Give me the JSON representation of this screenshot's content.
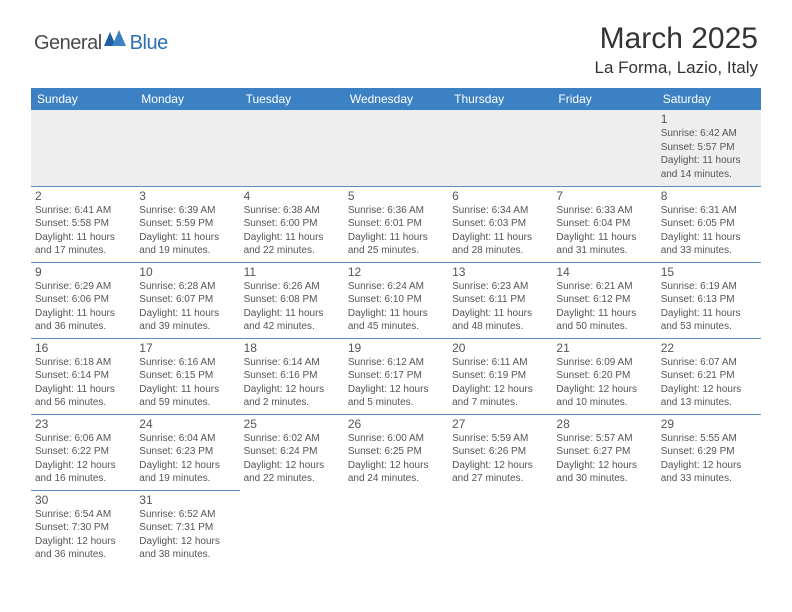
{
  "logo": {
    "text1": "General",
    "text2": "Blue"
  },
  "title": "March 2025",
  "location": "La Forma, Lazio, Italy",
  "colors": {
    "header_bg": "#3c81c4",
    "header_text": "#ffffff",
    "cell_border": "#5a8dc0",
    "shade": "#eeeeee",
    "text": "#555555",
    "logo_blue": "#2d6fb5"
  },
  "day_names": [
    "Sunday",
    "Monday",
    "Tuesday",
    "Wednesday",
    "Thursday",
    "Friday",
    "Saturday"
  ],
  "weeks": [
    [
      null,
      null,
      null,
      null,
      null,
      null,
      {
        "n": "1",
        "sr": "6:42 AM",
        "ss": "5:57 PM",
        "dl": "11 hours and 14 minutes."
      }
    ],
    [
      {
        "n": "2",
        "sr": "6:41 AM",
        "ss": "5:58 PM",
        "dl": "11 hours and 17 minutes."
      },
      {
        "n": "3",
        "sr": "6:39 AM",
        "ss": "5:59 PM",
        "dl": "11 hours and 19 minutes."
      },
      {
        "n": "4",
        "sr": "6:38 AM",
        "ss": "6:00 PM",
        "dl": "11 hours and 22 minutes."
      },
      {
        "n": "5",
        "sr": "6:36 AM",
        "ss": "6:01 PM",
        "dl": "11 hours and 25 minutes."
      },
      {
        "n": "6",
        "sr": "6:34 AM",
        "ss": "6:03 PM",
        "dl": "11 hours and 28 minutes."
      },
      {
        "n": "7",
        "sr": "6:33 AM",
        "ss": "6:04 PM",
        "dl": "11 hours and 31 minutes."
      },
      {
        "n": "8",
        "sr": "6:31 AM",
        "ss": "6:05 PM",
        "dl": "11 hours and 33 minutes."
      }
    ],
    [
      {
        "n": "9",
        "sr": "6:29 AM",
        "ss": "6:06 PM",
        "dl": "11 hours and 36 minutes."
      },
      {
        "n": "10",
        "sr": "6:28 AM",
        "ss": "6:07 PM",
        "dl": "11 hours and 39 minutes."
      },
      {
        "n": "11",
        "sr": "6:26 AM",
        "ss": "6:08 PM",
        "dl": "11 hours and 42 minutes."
      },
      {
        "n": "12",
        "sr": "6:24 AM",
        "ss": "6:10 PM",
        "dl": "11 hours and 45 minutes."
      },
      {
        "n": "13",
        "sr": "6:23 AM",
        "ss": "6:11 PM",
        "dl": "11 hours and 48 minutes."
      },
      {
        "n": "14",
        "sr": "6:21 AM",
        "ss": "6:12 PM",
        "dl": "11 hours and 50 minutes."
      },
      {
        "n": "15",
        "sr": "6:19 AM",
        "ss": "6:13 PM",
        "dl": "11 hours and 53 minutes."
      }
    ],
    [
      {
        "n": "16",
        "sr": "6:18 AM",
        "ss": "6:14 PM",
        "dl": "11 hours and 56 minutes."
      },
      {
        "n": "17",
        "sr": "6:16 AM",
        "ss": "6:15 PM",
        "dl": "11 hours and 59 minutes."
      },
      {
        "n": "18",
        "sr": "6:14 AM",
        "ss": "6:16 PM",
        "dl": "12 hours and 2 minutes."
      },
      {
        "n": "19",
        "sr": "6:12 AM",
        "ss": "6:17 PM",
        "dl": "12 hours and 5 minutes."
      },
      {
        "n": "20",
        "sr": "6:11 AM",
        "ss": "6:19 PM",
        "dl": "12 hours and 7 minutes."
      },
      {
        "n": "21",
        "sr": "6:09 AM",
        "ss": "6:20 PM",
        "dl": "12 hours and 10 minutes."
      },
      {
        "n": "22",
        "sr": "6:07 AM",
        "ss": "6:21 PM",
        "dl": "12 hours and 13 minutes."
      }
    ],
    [
      {
        "n": "23",
        "sr": "6:06 AM",
        "ss": "6:22 PM",
        "dl": "12 hours and 16 minutes."
      },
      {
        "n": "24",
        "sr": "6:04 AM",
        "ss": "6:23 PM",
        "dl": "12 hours and 19 minutes."
      },
      {
        "n": "25",
        "sr": "6:02 AM",
        "ss": "6:24 PM",
        "dl": "12 hours and 22 minutes."
      },
      {
        "n": "26",
        "sr": "6:00 AM",
        "ss": "6:25 PM",
        "dl": "12 hours and 24 minutes."
      },
      {
        "n": "27",
        "sr": "5:59 AM",
        "ss": "6:26 PM",
        "dl": "12 hours and 27 minutes."
      },
      {
        "n": "28",
        "sr": "5:57 AM",
        "ss": "6:27 PM",
        "dl": "12 hours and 30 minutes."
      },
      {
        "n": "29",
        "sr": "5:55 AM",
        "ss": "6:29 PM",
        "dl": "12 hours and 33 minutes."
      }
    ],
    [
      {
        "n": "30",
        "sr": "6:54 AM",
        "ss": "7:30 PM",
        "dl": "12 hours and 36 minutes."
      },
      {
        "n": "31",
        "sr": "6:52 AM",
        "ss": "7:31 PM",
        "dl": "12 hours and 38 minutes."
      },
      null,
      null,
      null,
      null,
      null
    ]
  ],
  "labels": {
    "sunrise": "Sunrise:",
    "sunset": "Sunset:",
    "daylight": "Daylight:"
  }
}
